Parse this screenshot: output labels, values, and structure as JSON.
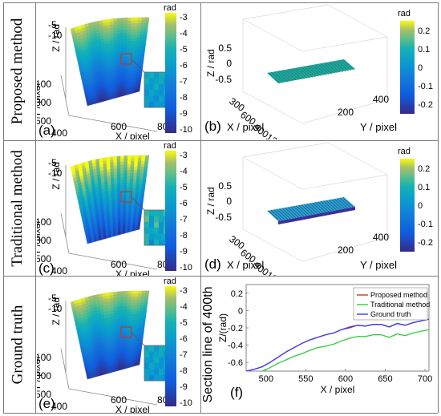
{
  "row_labels": [
    "Proposed method",
    "Traditional method",
    "Ground truth"
  ],
  "surface_panels": [
    {
      "panel_label": "(a)",
      "xlabel": "X / pixel",
      "ylabel": "Y / pixel",
      "zlabel": "Z / rad",
      "xticks": [
        "400",
        "600",
        "800"
      ],
      "yticks": [
        "100",
        "300",
        "500"
      ],
      "zticks": [
        "-5",
        "-10"
      ],
      "colorbar_unit": "rad",
      "colorbar_ticks": [
        "-3",
        "-4",
        "-5",
        "-6",
        "-7",
        "-8",
        "-9",
        "-10"
      ],
      "colormap": "parula",
      "colormap_top": "#3a3fd6",
      "colormap_bottom": "#f2ef1b"
    },
    {
      "panel_label": "(c)",
      "xlabel": "X / pixel",
      "ylabel": "Y / pixel",
      "zlabel": "Z / rad",
      "xticks": [
        "400",
        "600",
        "800"
      ],
      "yticks": [
        "100",
        "300",
        "500"
      ],
      "zticks": [
        "-5",
        "-10"
      ],
      "colorbar_unit": "rad",
      "colorbar_ticks": [
        "-3",
        "-4",
        "-5",
        "-6",
        "-7",
        "-8",
        "-9",
        "-10"
      ],
      "colormap": "parula",
      "colormap_top": "#3a3fd6",
      "colormap_bottom": "#f2ef1b"
    },
    {
      "panel_label": "(e)",
      "xlabel": "X / pixel",
      "ylabel": "Y / pixel",
      "zlabel": "Z / rad",
      "xticks": [
        "400",
        "600",
        "800"
      ],
      "yticks": [
        "100",
        "300",
        "500"
      ],
      "zticks": [
        "-5",
        "-10"
      ],
      "colorbar_unit": "rad",
      "colorbar_ticks": [
        "-3",
        "-4",
        "-5",
        "-6",
        "-7",
        "-8",
        "-9",
        "-10"
      ],
      "colormap": "parula",
      "colormap_top": "#3a3fd6",
      "colormap_bottom": "#f2ef1b"
    }
  ],
  "error_panels": [
    {
      "panel_label": "(b)",
      "xlabel": "X / pixel",
      "ylabel": "Y / pixel",
      "zlabel": "Z / rad",
      "xticks": [
        "300",
        "600",
        "900",
        "1200"
      ],
      "yticks": [
        "200",
        "400"
      ],
      "zticks": [
        "0.5",
        "0",
        "-0.5"
      ],
      "colorbar_unit": "rad",
      "colorbar_ticks": [
        "0.2",
        "0.1",
        "0",
        "-0.1",
        "-0.2"
      ]
    },
    {
      "panel_label": "(d)",
      "xlabel": "X / pixel",
      "ylabel": "Y / pixel",
      "zlabel": "Z / rad",
      "xticks": [
        "300",
        "600",
        "900",
        "1200"
      ],
      "yticks": [
        "200",
        "400"
      ],
      "zticks": [
        "0.5",
        "0",
        "-0.5"
      ],
      "colorbar_unit": "rad",
      "colorbar_ticks": [
        "0.2",
        "0.1",
        "0",
        "-0.1",
        "-0.2"
      ]
    }
  ],
  "chart_data": {
    "type": "line",
    "panel_label": "(f)",
    "side_label": "Section line of  400th",
    "xlabel": "X / pixel",
    "ylabel": "Z/(rad)",
    "xlim": [
      475,
      705
    ],
    "ylim": [
      -0.7,
      0.3
    ],
    "xticks": [
      "500",
      "550",
      "600",
      "650",
      "700"
    ],
    "yticks": [
      "0.2",
      "0",
      "-0.2",
      "-0.4",
      "-0.6"
    ],
    "legend": "top-right",
    "x": [
      475,
      485,
      495,
      505,
      515,
      525,
      535,
      545,
      555,
      565,
      575,
      585,
      595,
      605,
      615,
      625,
      635,
      645,
      655,
      665,
      675,
      685,
      695,
      705
    ],
    "series": [
      {
        "name": "Proposed method",
        "color": "#c0392b",
        "values": [
          -0.7,
          -0.68,
          -0.65,
          -0.6,
          -0.54,
          -0.48,
          -0.43,
          -0.38,
          -0.34,
          -0.31,
          -0.28,
          -0.26,
          -0.22,
          -0.19,
          -0.17,
          -0.18,
          -0.16,
          -0.16,
          -0.19,
          -0.15,
          -0.17,
          -0.14,
          -0.12,
          -0.1
        ]
      },
      {
        "name": "Traditional method",
        "color": "#2ecc40",
        "values": [
          -0.74,
          -0.72,
          -0.7,
          -0.66,
          -0.61,
          -0.57,
          -0.53,
          -0.5,
          -0.46,
          -0.43,
          -0.41,
          -0.39,
          -0.35,
          -0.32,
          -0.3,
          -0.3,
          -0.28,
          -0.28,
          -0.31,
          -0.27,
          -0.29,
          -0.26,
          -0.24,
          -0.22
        ]
      },
      {
        "name": "Ground truth",
        "color": "#3b3bff",
        "values": [
          -0.7,
          -0.68,
          -0.65,
          -0.6,
          -0.54,
          -0.48,
          -0.43,
          -0.38,
          -0.34,
          -0.31,
          -0.28,
          -0.26,
          -0.22,
          -0.2,
          -0.17,
          -0.18,
          -0.16,
          -0.16,
          -0.19,
          -0.15,
          -0.17,
          -0.14,
          -0.12,
          -0.1
        ]
      }
    ]
  }
}
